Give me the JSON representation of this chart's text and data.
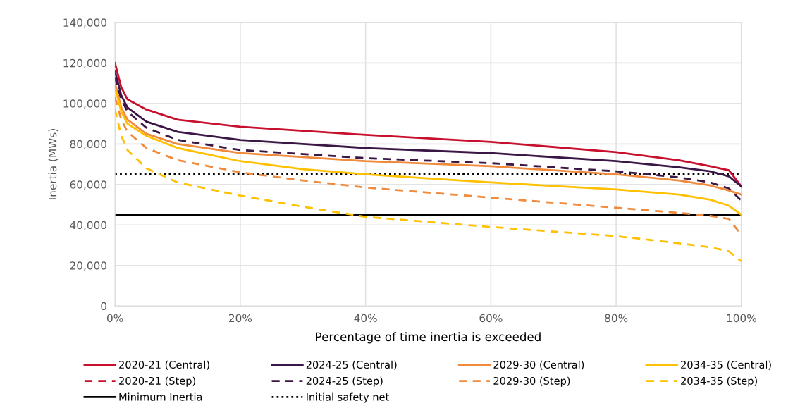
{
  "chart_data": {
    "type": "line",
    "xlabel": "Percentage of time inertia is exceeded",
    "ylabel": "Inertia (MWs)",
    "x": [
      0,
      1,
      2,
      5,
      10,
      20,
      30,
      40,
      60,
      80,
      90,
      95,
      98,
      100
    ],
    "series": [
      {
        "name": "2020-21 (Central)",
        "color": "#c8102e",
        "line_style": "solid",
        "values": [
          120000,
          108000,
          102000,
          97000,
          92000,
          88500,
          86500,
          84500,
          81000,
          76000,
          72000,
          69000,
          67000,
          59000
        ]
      },
      {
        "name": "2020-21 (Step)",
        "color": "#c8102e",
        "line_style": "dashed",
        "values": [
          null,
          null,
          null,
          null,
          null,
          null,
          null,
          null,
          null,
          null,
          null,
          null,
          null,
          null
        ]
      },
      {
        "name": "2024-25 (Central)",
        "color": "#3b1746",
        "line_style": "solid",
        "values": [
          116000,
          104000,
          98000,
          91000,
          86000,
          82000,
          80000,
          78000,
          75500,
          71500,
          68500,
          66500,
          64000,
          59000
        ]
      },
      {
        "name": "2024-25 (Step)",
        "color": "#3b1746",
        "line_style": "dashed",
        "values": [
          113000,
          102000,
          96000,
          88000,
          82000,
          77000,
          75000,
          73000,
          70500,
          66500,
          63500,
          61000,
          58000,
          52000
        ]
      },
      {
        "name": "2029-30 (Central)",
        "color": "#f08a3c",
        "line_style": "solid",
        "values": [
          110000,
          98000,
          92000,
          85000,
          80000,
          75500,
          73500,
          71500,
          69000,
          65000,
          62000,
          59500,
          57000,
          55000
        ]
      },
      {
        "name": "2029-30 (Step)",
        "color": "#f08a3c",
        "line_style": "dashed",
        "values": [
          103000,
          92000,
          86000,
          78000,
          72000,
          66000,
          62000,
          58500,
          53500,
          48500,
          46000,
          44500,
          43000,
          35000
        ]
      },
      {
        "name": "2034-35 (Central)",
        "color": "#ffc000",
        "line_style": "solid",
        "values": [
          108000,
          96000,
          90000,
          84000,
          78000,
          71500,
          67500,
          65000,
          61000,
          57500,
          55000,
          52500,
          49500,
          45000
        ]
      },
      {
        "name": "2034-35 (Step)",
        "color": "#ffc000",
        "line_style": "dashed",
        "values": [
          97000,
          84000,
          77000,
          68000,
          61000,
          54500,
          49000,
          44000,
          39000,
          34500,
          31000,
          29000,
          27000,
          22000
        ]
      }
    ],
    "ref_lines": [
      {
        "axis": "y",
        "value": 45000,
        "label": "Minimum Inertia",
        "color": "#000000",
        "line_style": "solid"
      },
      {
        "axis": "y",
        "value": 65000,
        "label": "Initial safety net",
        "color": "#000000",
        "line_style": "dotted"
      }
    ],
    "xlim": [
      0,
      100
    ],
    "xticks": [
      {
        "value": 0,
        "label": "0%"
      },
      {
        "value": 20,
        "label": "20%"
      },
      {
        "value": 40,
        "label": "40%"
      },
      {
        "value": 60,
        "label": "60%"
      },
      {
        "value": 80,
        "label": "80%"
      },
      {
        "value": 100,
        "label": "100%"
      }
    ],
    "ylim": [
      0,
      140000
    ],
    "yticks": [
      0,
      {
        "value": 20000,
        "label": "20,000"
      },
      {
        "value": 40000,
        "label": "40,000"
      },
      {
        "value": 60000,
        "label": "60,000"
      },
      {
        "value": 80000,
        "label": "80,000"
      },
      {
        "value": 100000,
        "label": "100,000"
      },
      {
        "value": 120000,
        "label": "120,000"
      },
      {
        "value": 140000,
        "label": "140,000"
      }
    ],
    "grid": true,
    "legend": "bottom"
  }
}
